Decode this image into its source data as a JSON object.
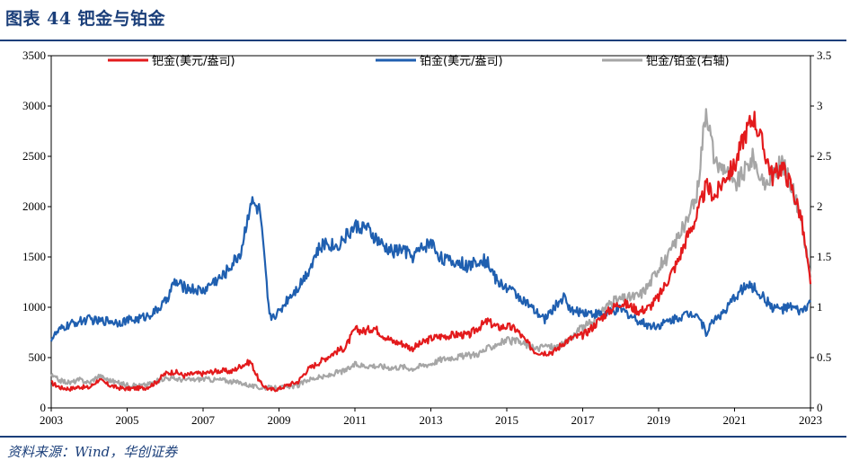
{
  "figure": {
    "title": "图表 44  钯金与铂金",
    "source": "资料来源：Wind，华创证券"
  },
  "chart_data": {
    "type": "line",
    "x_label": "",
    "y_left_label": "",
    "y_right_label": "",
    "xlim": [
      2003,
      2023
    ],
    "ylim_left": [
      0,
      3500
    ],
    "ylim_right": [
      0,
      3.5
    ],
    "x_ticks": [
      "2003",
      "2005",
      "2007",
      "2009",
      "2011",
      "2013",
      "2015",
      "2017",
      "2019",
      "2021",
      "2023"
    ],
    "y_left_ticks": [
      "0",
      "500",
      "1000",
      "1500",
      "2000",
      "2500",
      "3000",
      "3500"
    ],
    "y_right_ticks": [
      "0",
      "0.5",
      "1",
      "1.5",
      "2",
      "2.5",
      "3",
      "3.5"
    ],
    "legend_position": "top",
    "series": [
      {
        "name": "钯金(美元/盎司)",
        "axis": "left",
        "color": "#e31a1c",
        "x": [
          2003.0,
          2003.25,
          2003.5,
          2003.75,
          2004.0,
          2004.25,
          2004.5,
          2004.75,
          2005.0,
          2005.25,
          2005.5,
          2005.75,
          2006.0,
          2006.25,
          2006.5,
          2006.75,
          2007.0,
          2007.25,
          2007.5,
          2007.75,
          2008.0,
          2008.25,
          2008.5,
          2008.75,
          2009.0,
          2009.25,
          2009.5,
          2009.75,
          2010.0,
          2010.25,
          2010.5,
          2010.75,
          2011.0,
          2011.25,
          2011.5,
          2011.75,
          2012.0,
          2012.25,
          2012.5,
          2012.75,
          2013.0,
          2013.25,
          2013.5,
          2013.75,
          2014.0,
          2014.25,
          2014.5,
          2014.75,
          2015.0,
          2015.25,
          2015.5,
          2015.75,
          2016.0,
          2016.25,
          2016.5,
          2016.75,
          2017.0,
          2017.25,
          2017.5,
          2017.75,
          2018.0,
          2018.25,
          2018.5,
          2018.75,
          2019.0,
          2019.25,
          2019.5,
          2019.75,
          2020.0,
          2020.25,
          2020.5,
          2020.75,
          2021.0,
          2021.25,
          2021.5,
          2021.75,
          2022.0,
          2022.25,
          2022.5,
          2022.75,
          2023.0
        ],
        "values": [
          250,
          200,
          190,
          210,
          200,
          280,
          230,
          200,
          190,
          195,
          200,
          250,
          340,
          360,
          320,
          340,
          340,
          360,
          370,
          360,
          420,
          460,
          250,
          180,
          190,
          230,
          260,
          380,
          440,
          500,
          560,
          600,
          780,
          760,
          800,
          720,
          660,
          640,
          590,
          640,
          690,
          710,
          720,
          730,
          720,
          800,
          860,
          800,
          810,
          780,
          660,
          560,
          550,
          560,
          650,
          700,
          720,
          800,
          900,
          980,
          1050,
          1010,
          960,
          1000,
          1100,
          1280,
          1450,
          1700,
          1900,
          2200,
          2100,
          2300,
          2400,
          2700,
          2900,
          2600,
          2300,
          2400,
          2200,
          1900,
          1230
        ]
      },
      {
        "name": "铂金(美元/盎司)",
        "axis": "left",
        "color": "#1f5fb0",
        "x": [
          2003.0,
          2003.25,
          2003.5,
          2003.75,
          2004.0,
          2004.25,
          2004.5,
          2004.75,
          2005.0,
          2005.25,
          2005.5,
          2005.75,
          2006.0,
          2006.25,
          2006.5,
          2006.75,
          2007.0,
          2007.25,
          2007.5,
          2007.75,
          2008.0,
          2008.25,
          2008.5,
          2008.75,
          2009.0,
          2009.25,
          2009.5,
          2009.75,
          2010.0,
          2010.25,
          2010.5,
          2010.75,
          2011.0,
          2011.25,
          2011.5,
          2011.75,
          2012.0,
          2012.25,
          2012.5,
          2012.75,
          2013.0,
          2013.25,
          2013.5,
          2013.75,
          2014.0,
          2014.25,
          2014.5,
          2014.75,
          2015.0,
          2015.25,
          2015.5,
          2015.75,
          2016.0,
          2016.25,
          2016.5,
          2016.75,
          2017.0,
          2017.25,
          2017.5,
          2017.75,
          2018.0,
          2018.25,
          2018.5,
          2018.75,
          2019.0,
          2019.25,
          2019.5,
          2019.75,
          2020.0,
          2020.25,
          2020.5,
          2020.75,
          2021.0,
          2021.25,
          2021.5,
          2021.75,
          2022.0,
          2022.25,
          2022.5,
          2022.75,
          2023.0
        ],
        "values": [
          690,
          780,
          830,
          860,
          880,
          860,
          870,
          850,
          870,
          880,
          910,
          960,
          1050,
          1250,
          1200,
          1180,
          1160,
          1250,
          1300,
          1420,
          1550,
          2050,
          1950,
          900,
          950,
          1100,
          1200,
          1350,
          1550,
          1650,
          1600,
          1700,
          1800,
          1800,
          1700,
          1600,
          1550,
          1580,
          1500,
          1580,
          1650,
          1500,
          1450,
          1450,
          1400,
          1480,
          1450,
          1250,
          1200,
          1130,
          1050,
          950,
          880,
          1000,
          1100,
          950,
          960,
          940,
          930,
          950,
          980,
          920,
          860,
          820,
          820,
          860,
          900,
          930,
          950,
          750,
          900,
          950,
          1100,
          1200,
          1200,
          1100,
          1000,
          980,
          1000,
          950,
          1050
        ]
      },
      {
        "name": "钯金/铂金(右轴)",
        "axis": "right",
        "color": "#a6a6a6",
        "x": [
          2003.0,
          2003.25,
          2003.5,
          2003.75,
          2004.0,
          2004.25,
          2004.5,
          2004.75,
          2005.0,
          2005.25,
          2005.5,
          2005.75,
          2006.0,
          2006.25,
          2006.5,
          2006.75,
          2007.0,
          2007.25,
          2007.5,
          2007.75,
          2008.0,
          2008.25,
          2008.5,
          2008.75,
          2009.0,
          2009.25,
          2009.5,
          2009.75,
          2010.0,
          2010.25,
          2010.5,
          2010.75,
          2011.0,
          2011.25,
          2011.5,
          2011.75,
          2012.0,
          2012.25,
          2012.5,
          2012.75,
          2013.0,
          2013.25,
          2013.5,
          2013.75,
          2014.0,
          2014.25,
          2014.5,
          2014.75,
          2015.0,
          2015.25,
          2015.5,
          2015.75,
          2016.0,
          2016.25,
          2016.5,
          2016.75,
          2017.0,
          2017.25,
          2017.5,
          2017.75,
          2018.0,
          2018.25,
          2018.5,
          2018.75,
          2019.0,
          2019.25,
          2019.5,
          2019.75,
          2020.0,
          2020.25,
          2020.5,
          2020.75,
          2021.0,
          2021.25,
          2021.5,
          2021.75,
          2022.0,
          2022.25,
          2022.5,
          2022.75,
          2023.0
        ],
        "values": [
          0.32,
          0.27,
          0.25,
          0.28,
          0.25,
          0.32,
          0.28,
          0.25,
          0.23,
          0.22,
          0.23,
          0.26,
          0.3,
          0.29,
          0.28,
          0.28,
          0.29,
          0.28,
          0.28,
          0.26,
          0.25,
          0.22,
          0.2,
          0.2,
          0.2,
          0.21,
          0.22,
          0.28,
          0.3,
          0.31,
          0.35,
          0.37,
          0.43,
          0.42,
          0.42,
          0.41,
          0.4,
          0.41,
          0.39,
          0.42,
          0.44,
          0.48,
          0.5,
          0.51,
          0.52,
          0.54,
          0.59,
          0.64,
          0.67,
          0.66,
          0.63,
          0.58,
          0.62,
          0.6,
          0.63,
          0.72,
          0.8,
          0.85,
          0.97,
          1.05,
          1.08,
          1.1,
          1.12,
          1.23,
          1.4,
          1.5,
          1.7,
          1.85,
          2.1,
          3.0,
          2.4,
          2.4,
          2.2,
          2.35,
          2.5,
          2.2,
          2.3,
          2.45,
          2.2,
          1.9,
          1.3
        ]
      }
    ]
  }
}
